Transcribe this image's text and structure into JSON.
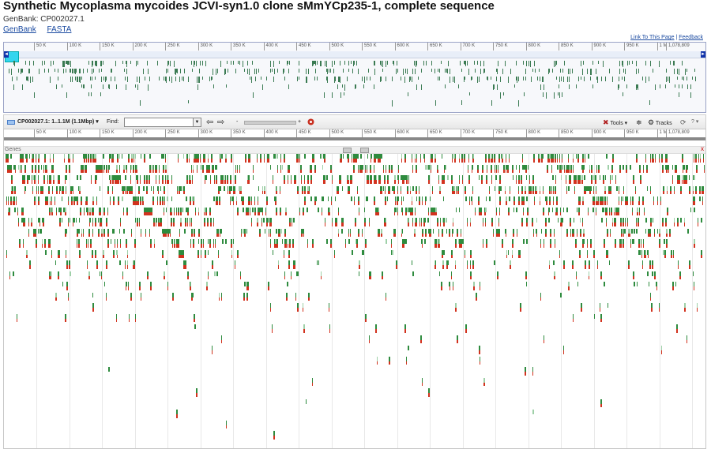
{
  "page": {
    "title": "Synthetic Mycoplasma mycoides JCVI-syn1.0 clone sMmYCp235-1, complete sequence",
    "accession": "GenBank: CP002027.1",
    "links": [
      "GenBank",
      "FASTA"
    ],
    "link_to_page": "Link To This Page",
    "separator": "|",
    "feedback": "Feedback"
  },
  "overview": {
    "ticks": [
      "50 K",
      "100 K",
      "150 K",
      "200 K",
      "250 K",
      "300 K",
      "350 K",
      "400 K",
      "450 K",
      "500 K",
      "550 K",
      "600 K",
      "650 K",
      "700 K",
      "750 K",
      "800 K",
      "850 K",
      "900 K",
      "950 K",
      "1 M",
      "1,078,809"
    ],
    "nav_left": "◄",
    "nav_right": "►"
  },
  "toolbar": {
    "sequence_label": "CP002027.1: 1..1.1M (1.1Mbp)",
    "find_label": "Find:",
    "find_value": "",
    "zoom_minus": "-",
    "zoom_plus": "+",
    "tools_label": "Tools",
    "tracks_label": "Tracks",
    "help_label": "?"
  },
  "main_ruler": {
    "ticks": [
      "50 K",
      "100 K",
      "150 K",
      "200 K",
      "250 K",
      "300 K",
      "350 K",
      "400 K",
      "450 K",
      "500 K",
      "550 K",
      "600 K",
      "650 K",
      "700 K",
      "750 K",
      "800 K",
      "850 K",
      "900 K",
      "950 K",
      "1 M",
      "1,078,809"
    ]
  },
  "track": {
    "name": "Genes",
    "close": "x"
  },
  "colors": {
    "gene_green": "#2e8b3e",
    "gene_red": "#d2321e",
    "gene_light": "#9fd0a8",
    "overview_gene": "#3a7a52",
    "selection": "#33d5ee"
  },
  "icons": {
    "sequence": "sequence-icon",
    "back": "back-arrow-icon",
    "forward": "forward-arrow-icon",
    "tools": "tools-icon",
    "tracks": "gear-icon",
    "refresh": "refresh-icon",
    "help": "help-icon"
  }
}
